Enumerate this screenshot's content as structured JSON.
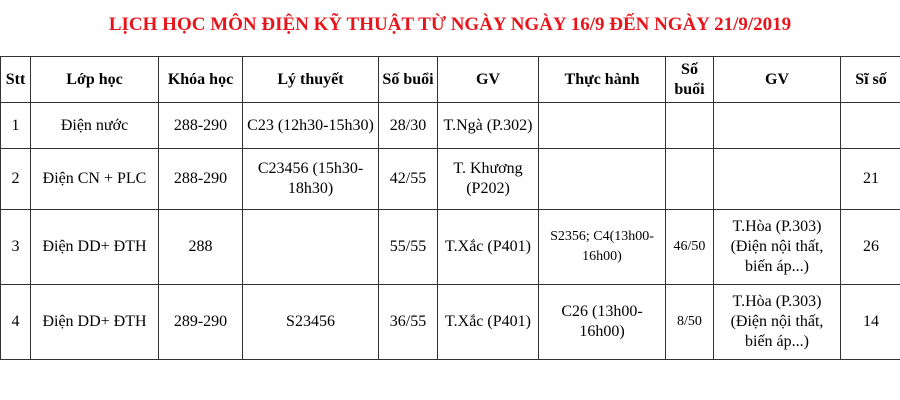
{
  "title": "LỊCH HỌC MÔN ĐIỆN KỸ THUẬT TỪ NGÀY NGÀY 16/9 ĐẾN NGÀY 21/9/2019",
  "headers": [
    "Stt",
    "Lớp học",
    "Khóa học",
    "Lý thuyết",
    "Số buổi",
    "GV",
    "Thực hành",
    "Số buổi",
    "GV",
    "Sĩ số"
  ],
  "rows": [
    [
      "1",
      "Điện nước",
      "288-290",
      "C23 (12h30-15h30)",
      "28/30",
      "T.Ngà (P.302)",
      "",
      "",
      "",
      ""
    ],
    [
      "2",
      "Điện CN + PLC",
      "288-290",
      "C23456 (15h30-18h30)",
      "42/55",
      "T. Khương (P202)",
      "",
      "",
      "",
      "21"
    ],
    [
      "3",
      "Điện DD+ ĐTH",
      "288",
      "",
      "55/55",
      "T.Xắc (P401)",
      "S2356; C4(13h00-16h00)",
      "46/50",
      "T.Hòa (P.303) (Điện nội thất, biến áp...)",
      "26"
    ],
    [
      "4",
      "Điện DD+ ĐTH",
      "289-290",
      "S23456",
      "36/55",
      "T.Xắc (P401)",
      "C26 (13h00-16h00)",
      "8/50",
      "T.Hòa (P.303) (Điện nội thất, biến áp...)",
      "14"
    ]
  ]
}
